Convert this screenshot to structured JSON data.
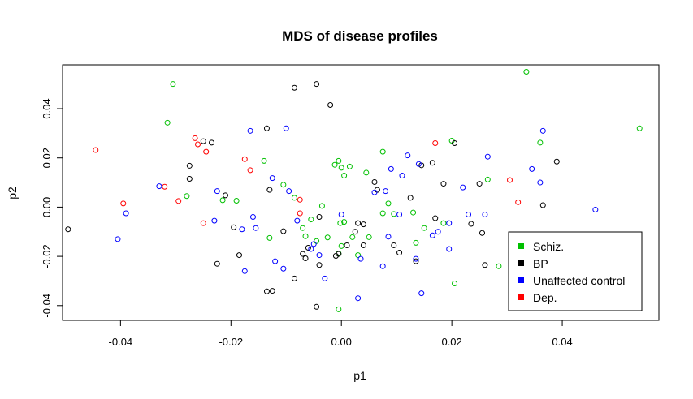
{
  "chart_data": {
    "type": "scatter",
    "title": "MDS of disease profiles",
    "xlabel": "p1",
    "ylabel": "p2",
    "xlim": [
      -0.0505,
      0.0575
    ],
    "ylim": [
      -0.046,
      0.0578
    ],
    "xticks": [
      -0.04,
      -0.02,
      0.0,
      0.02,
      0.04
    ],
    "xtick_labels": [
      "-0.04",
      "-0.02",
      "0.00",
      "0.02",
      "0.04"
    ],
    "yticks": [
      -0.04,
      -0.02,
      0.0,
      0.02,
      0.04
    ],
    "ytick_labels": [
      "-0.04",
      "-0.02",
      "0.00",
      "0.02",
      "0.04"
    ],
    "grid": false,
    "legend_position": "bottom-right",
    "series": [
      {
        "name": "Schiz.",
        "color": "#00c000",
        "points": [
          [
            -0.0305,
            0.05
          ],
          [
            -0.0315,
            0.0343
          ],
          [
            0.0335,
            0.055
          ],
          [
            0.054,
            0.032
          ],
          [
            -0.014,
            0.0188
          ],
          [
            -0.0105,
            0.0091
          ],
          [
            -0.0085,
            0.0038
          ],
          [
            -0.019,
            0.0026
          ],
          [
            -0.028,
            0.0045
          ],
          [
            -0.0215,
            0.0028
          ],
          [
            -0.013,
            -0.0125
          ],
          [
            -0.007,
            -0.0085
          ],
          [
            -0.0055,
            -0.005
          ],
          [
            -0.0045,
            -0.0138
          ],
          [
            -0.0035,
            0.0005
          ],
          [
            -0.0065,
            -0.0118
          ],
          [
            -0.0025,
            -0.0123
          ],
          [
            -0.0012,
            0.0172
          ],
          [
            -0.0005,
            0.0188
          ],
          [
            0.0,
            0.016
          ],
          [
            0.0005,
            0.0128
          ],
          [
            0.0015,
            0.0165
          ],
          [
            -0.0002,
            -0.0065
          ],
          [
            0.0005,
            -0.006
          ],
          [
            0.0,
            -0.0158
          ],
          [
            -0.0005,
            -0.0188
          ],
          [
            -0.0005,
            -0.0415
          ],
          [
            0.002,
            -0.0122
          ],
          [
            0.005,
            -0.0122
          ],
          [
            0.003,
            -0.0195
          ],
          [
            0.0045,
            0.014
          ],
          [
            0.0075,
            0.0225
          ],
          [
            0.0085,
            0.0015
          ],
          [
            0.0095,
            -0.0028
          ],
          [
            0.013,
            -0.0022
          ],
          [
            0.0135,
            -0.0145
          ],
          [
            0.015,
            -0.0085
          ],
          [
            0.0185,
            -0.0065
          ],
          [
            0.02,
            0.027
          ],
          [
            0.0205,
            -0.031
          ],
          [
            0.0265,
            0.0112
          ],
          [
            0.0285,
            -0.024
          ],
          [
            0.036,
            0.0262
          ],
          [
            0.0075,
            -0.0025
          ]
        ]
      },
      {
        "name": "BP",
        "color": "#000000",
        "points": [
          [
            -0.0495,
            -0.009
          ],
          [
            -0.0275,
            0.0168
          ],
          [
            -0.0275,
            0.0115
          ],
          [
            -0.025,
            0.0268
          ],
          [
            -0.0235,
            0.0262
          ],
          [
            -0.021,
            0.0048
          ],
          [
            -0.0225,
            -0.023
          ],
          [
            -0.0195,
            -0.0082
          ],
          [
            -0.0185,
            -0.0195
          ],
          [
            -0.0135,
            0.032
          ],
          [
            -0.013,
            0.007
          ],
          [
            -0.0125,
            -0.034
          ],
          [
            -0.0135,
            -0.0342
          ],
          [
            -0.0105,
            -0.0098
          ],
          [
            -0.0085,
            0.0485
          ],
          [
            -0.0085,
            -0.029
          ],
          [
            -0.0065,
            -0.0208
          ],
          [
            -0.007,
            -0.019
          ],
          [
            -0.0045,
            0.05
          ],
          [
            -0.004,
            -0.004
          ],
          [
            -0.004,
            -0.0235
          ],
          [
            -0.0045,
            -0.0405
          ],
          [
            -0.006,
            -0.0165
          ],
          [
            -0.002,
            0.0415
          ],
          [
            -0.001,
            -0.0198
          ],
          [
            -0.0005,
            -0.019
          ],
          [
            0.001,
            -0.0155
          ],
          [
            0.0025,
            -0.01
          ],
          [
            0.003,
            -0.0065
          ],
          [
            0.004,
            -0.007
          ],
          [
            0.004,
            -0.0155
          ],
          [
            0.0065,
            0.007
          ],
          [
            0.006,
            0.0102
          ],
          [
            0.0095,
            -0.0155
          ],
          [
            0.0105,
            -0.0185
          ],
          [
            0.0125,
            0.0038
          ],
          [
            0.0135,
            -0.022
          ],
          [
            0.0145,
            0.017
          ],
          [
            0.0165,
            0.018
          ],
          [
            0.017,
            -0.0045
          ],
          [
            0.0185,
            0.0095
          ],
          [
            0.0205,
            0.026
          ],
          [
            0.0235,
            -0.0068
          ],
          [
            0.0255,
            -0.0105
          ],
          [
            0.025,
            0.0095
          ],
          [
            0.026,
            -0.0235
          ],
          [
            0.0365,
            0.0008
          ],
          [
            0.039,
            0.0185
          ]
        ]
      },
      {
        "name": "Unaffected control",
        "color": "#0000ff",
        "points": [
          [
            -0.0405,
            -0.013
          ],
          [
            -0.039,
            -0.0025
          ],
          [
            -0.033,
            0.0085
          ],
          [
            -0.0225,
            0.0065
          ],
          [
            -0.023,
            -0.0055
          ],
          [
            -0.018,
            -0.009
          ],
          [
            -0.0165,
            0.031
          ],
          [
            -0.0175,
            -0.026
          ],
          [
            -0.016,
            -0.004
          ],
          [
            -0.0155,
            -0.0085
          ],
          [
            -0.0125,
            0.0118
          ],
          [
            -0.012,
            -0.022
          ],
          [
            -0.0105,
            -0.025
          ],
          [
            -0.01,
            0.032
          ],
          [
            -0.0095,
            0.0065
          ],
          [
            -0.008,
            -0.0055
          ],
          [
            -0.0055,
            -0.017
          ],
          [
            -0.005,
            -0.015
          ],
          [
            -0.004,
            -0.0195
          ],
          [
            0.003,
            -0.037
          ],
          [
            0.0035,
            -0.021
          ],
          [
            0.006,
            0.006
          ],
          [
            0.0075,
            -0.024
          ],
          [
            0.008,
            0.0065
          ],
          [
            0.0085,
            -0.012
          ],
          [
            0.009,
            0.0155
          ],
          [
            0.0105,
            -0.003
          ],
          [
            0.011,
            0.0128
          ],
          [
            0.012,
            0.021
          ],
          [
            0.014,
            0.0175
          ],
          [
            0.0135,
            -0.021
          ],
          [
            0.0145,
            -0.035
          ],
          [
            0.0165,
            -0.0115
          ],
          [
            0.0175,
            -0.01
          ],
          [
            0.0195,
            -0.017
          ],
          [
            0.0195,
            -0.0065
          ],
          [
            0.022,
            0.008
          ],
          [
            0.023,
            -0.003
          ],
          [
            0.0265,
            0.0205
          ],
          [
            0.026,
            -0.003
          ],
          [
            0.0345,
            0.0155
          ],
          [
            0.0365,
            0.031
          ],
          [
            0.036,
            0.01
          ],
          [
            0.046,
            -0.001
          ],
          [
            0.0,
            -0.003
          ],
          [
            -0.003,
            -0.029
          ]
        ]
      },
      {
        "name": "Dep.",
        "color": "#ff0000",
        "points": [
          [
            -0.0445,
            0.0232
          ],
          [
            -0.0395,
            0.0015
          ],
          [
            -0.032,
            0.0083
          ],
          [
            -0.0295,
            0.0025
          ],
          [
            -0.0265,
            0.028
          ],
          [
            -0.026,
            0.0255
          ],
          [
            -0.0245,
            0.0225
          ],
          [
            -0.025,
            -0.0065
          ],
          [
            -0.0175,
            0.0195
          ],
          [
            -0.0165,
            0.015
          ],
          [
            -0.0075,
            0.003
          ],
          [
            -0.0075,
            -0.0025
          ],
          [
            0.017,
            0.026
          ],
          [
            0.0305,
            0.011
          ],
          [
            0.032,
            0.002
          ]
        ]
      }
    ]
  }
}
